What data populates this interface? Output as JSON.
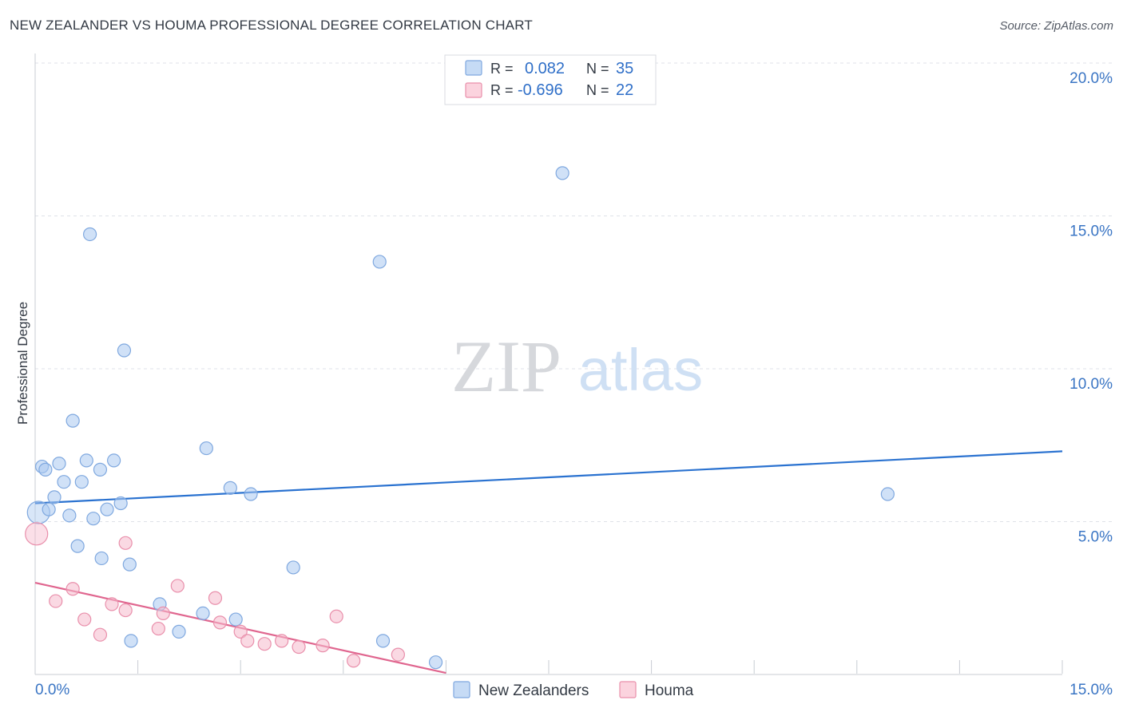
{
  "header": {
    "title": "NEW ZEALANDER VS HOUMA PROFESSIONAL DEGREE CORRELATION CHART",
    "source": "Source: ZipAtlas.com"
  },
  "watermark": {
    "zip": "ZIP",
    "atlas": "atlas"
  },
  "colors": {
    "blue_fill": "#a9c8f0",
    "blue_stroke": "#7fa8df",
    "blue_line": "#2a72d0",
    "pink_fill": "#f6b9cc",
    "pink_stroke": "#e98fab",
    "pink_line": "#e0668f",
    "tick_label": "#3a75c4",
    "grid": "#dfe2e8"
  },
  "legend": {
    "rows": [
      {
        "r_label": "R =",
        "r_value": "0.082",
        "n_label": "N =",
        "n_value": "35",
        "series": "blue"
      },
      {
        "r_label": "R =",
        "r_value": "-0.696",
        "n_label": "N =",
        "n_value": "22",
        "series": "pink"
      }
    ]
  },
  "chart_data": {
    "type": "scatter",
    "title": "NEW ZEALANDER VS HOUMA PROFESSIONAL DEGREE CORRELATION CHART",
    "xlabel": "",
    "ylabel": "Professional Degree",
    "xlim": [
      0,
      15
    ],
    "ylim": [
      0,
      20
    ],
    "x_tick_labels": [
      "0.0%",
      "15.0%"
    ],
    "y_ticks": [
      5,
      10,
      15,
      20
    ],
    "y_tick_labels": [
      "5.0%",
      "10.0%",
      "15.0%",
      "20.0%"
    ],
    "grid": true,
    "legend_position": "bottom",
    "series": [
      {
        "name": "New Zealanders",
        "color": "blue",
        "r": 0.082,
        "n": 35,
        "trend": {
          "x0": 0,
          "y0": 5.6,
          "x1": 15,
          "y1": 7.3
        },
        "points": [
          {
            "x": 0.05,
            "y": 5.3,
            "big": true
          },
          {
            "x": 0.1,
            "y": 6.8
          },
          {
            "x": 0.15,
            "y": 6.7
          },
          {
            "x": 0.2,
            "y": 5.4
          },
          {
            "x": 0.28,
            "y": 5.8
          },
          {
            "x": 0.35,
            "y": 6.9
          },
          {
            "x": 0.42,
            "y": 6.3
          },
          {
            "x": 0.5,
            "y": 5.2
          },
          {
            "x": 0.55,
            "y": 8.3
          },
          {
            "x": 0.62,
            "y": 4.2
          },
          {
            "x": 0.68,
            "y": 6.3
          },
          {
            "x": 0.75,
            "y": 7.0
          },
          {
            "x": 0.8,
            "y": 14.4
          },
          {
            "x": 0.85,
            "y": 5.1
          },
          {
            "x": 0.95,
            "y": 6.7
          },
          {
            "x": 0.97,
            "y": 3.8
          },
          {
            "x": 1.05,
            "y": 5.4
          },
          {
            "x": 1.15,
            "y": 7.0
          },
          {
            "x": 1.25,
            "y": 5.6
          },
          {
            "x": 1.3,
            "y": 10.6
          },
          {
            "x": 1.38,
            "y": 3.6
          },
          {
            "x": 1.4,
            "y": 1.1
          },
          {
            "x": 1.82,
            "y": 2.3
          },
          {
            "x": 2.1,
            "y": 1.4
          },
          {
            "x": 2.45,
            "y": 2.0
          },
          {
            "x": 2.5,
            "y": 7.4
          },
          {
            "x": 2.85,
            "y": 6.1
          },
          {
            "x": 2.93,
            "y": 1.8
          },
          {
            "x": 3.15,
            "y": 5.9
          },
          {
            "x": 3.77,
            "y": 3.5
          },
          {
            "x": 5.03,
            "y": 13.5
          },
          {
            "x": 5.08,
            "y": 1.1
          },
          {
            "x": 5.85,
            "y": 0.4
          },
          {
            "x": 7.7,
            "y": 16.4
          },
          {
            "x": 12.45,
            "y": 5.9
          }
        ]
      },
      {
        "name": "Houma",
        "color": "pink",
        "r": -0.696,
        "n": 22,
        "trend": {
          "x0": 0,
          "y0": 3.0,
          "x1": 6.0,
          "y1": 0.05
        },
        "points": [
          {
            "x": 0.02,
            "y": 4.6,
            "big": true
          },
          {
            "x": 0.3,
            "y": 2.4
          },
          {
            "x": 0.55,
            "y": 2.8
          },
          {
            "x": 0.72,
            "y": 1.8
          },
          {
            "x": 0.95,
            "y": 1.3
          },
          {
            "x": 1.12,
            "y": 2.3
          },
          {
            "x": 1.32,
            "y": 2.1
          },
          {
            "x": 1.32,
            "y": 4.3
          },
          {
            "x": 1.8,
            "y": 1.5
          },
          {
            "x": 1.87,
            "y": 2.0
          },
          {
            "x": 2.08,
            "y": 2.9
          },
          {
            "x": 2.63,
            "y": 2.5
          },
          {
            "x": 2.7,
            "y": 1.7
          },
          {
            "x": 3.0,
            "y": 1.4
          },
          {
            "x": 3.1,
            "y": 1.1
          },
          {
            "x": 3.35,
            "y": 1.0
          },
          {
            "x": 3.6,
            "y": 1.1
          },
          {
            "x": 3.85,
            "y": 0.9
          },
          {
            "x": 4.2,
            "y": 0.95
          },
          {
            "x": 4.4,
            "y": 1.9
          },
          {
            "x": 4.65,
            "y": 0.45
          },
          {
            "x": 5.3,
            "y": 0.65
          }
        ]
      }
    ]
  }
}
